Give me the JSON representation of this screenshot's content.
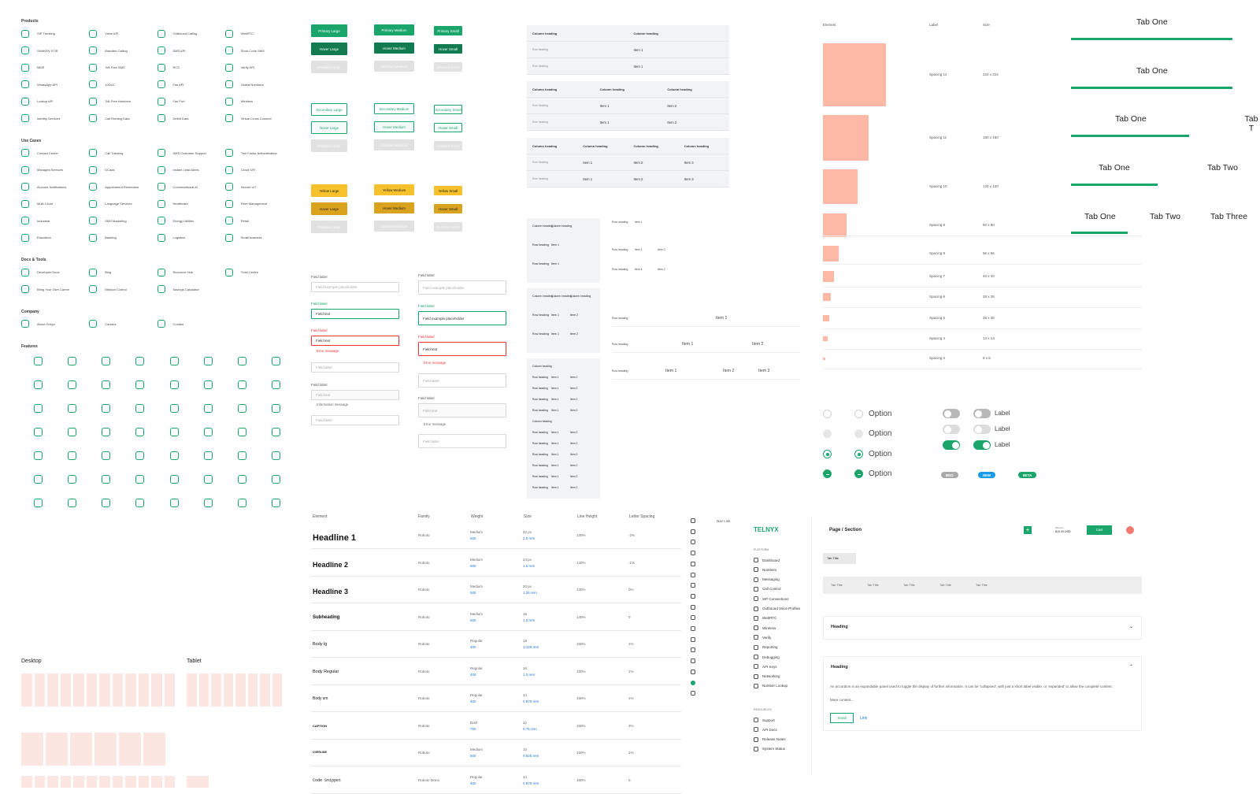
{
  "icons": {
    "products_title": "Products",
    "products": [
      "SIP Trunking",
      "Voice API",
      "Outbound Calling",
      "WebRTC",
      "SHAKEN STIR",
      "Branded Calling",
      "SMS API",
      "Short Code SMS",
      "MMS",
      "Toll-Free SMS",
      "RCS",
      "Verify API",
      "WhatsApp API",
      "10DLC",
      "Fax API",
      "Global Numbers",
      "Lookup API",
      "Toll-Free Numbers",
      "Fax Port",
      "Wireless",
      "Identity Services",
      "Call Routing Data",
      "Deltrit Data",
      "Virtual Cross Connect"
    ],
    "usecases_title": "Use Cases",
    "usecases": [
      "Contact Center",
      "Call Tracking",
      "SMS Customer Support",
      "Two Factor Authentication",
      "Managed Services",
      "UCaas",
      "Instant Lead Alerts",
      "Cloud IVR",
      "Account Notifications",
      "Appointment Reminders",
      "Conversational AI",
      "Secure IoT",
      "Multi-Cloud",
      "Language Services",
      "Healthcare",
      "Fleet Management",
      "Industrial",
      "SMS Marketing",
      "Energy Utilities",
      "Retail",
      "Education",
      "Banking",
      "Logistics",
      "Small business"
    ],
    "docs_title": "Docs & Tools",
    "docs": [
      "Developer Docs",
      "Blog",
      "Resource Hub",
      "Trust Centre",
      "Bring Your Own Carrier",
      "Mission Control",
      "Savings Calculator"
    ],
    "company_title": "Company",
    "company": [
      "About Telnyx",
      "Careers",
      "Contact"
    ],
    "features_title": "Features"
  },
  "buttons": {
    "primary": [
      "Primary Large",
      "Primary Medium",
      "Primary Small",
      "Hover Large",
      "Hover Medium",
      "Hover Small",
      "Disabled Large",
      "Disabled Medium",
      "Disabled Small"
    ],
    "secondary": [
      "Secondary Large",
      "Secondary Medium",
      "Secondary Small",
      "Hover Large",
      "Hover Medium",
      "Hover Small",
      "Disabled Large",
      "Disabled Medium",
      "Disabled Small"
    ],
    "yellow": [
      "Yellow Large",
      "Yellow Medium",
      "Yellow Small",
      "Hover Large",
      "Hover Medium",
      "Hover Small",
      "Disabled Large",
      "Disabled Medium",
      "Disabled Small"
    ]
  },
  "fields": {
    "label": "Field label",
    "placeholder": "Field example placeholder",
    "text": "Field text",
    "error": "Error message",
    "info": "Information message"
  },
  "tables": {
    "col": "Column heading",
    "row": "Row heading",
    "i1": "Item 1",
    "i2": "Item 2",
    "i3": "Item 3"
  },
  "spacing": {
    "headers": [
      "Element",
      "Label",
      "Size"
    ],
    "rows": [
      [
        "Spacing 12",
        "224 x 224"
      ],
      [
        "Spacing 11",
        "160 x 160"
      ],
      [
        "Spacing 10",
        "120 x 120"
      ],
      [
        "Spacing 9",
        "80 x 80"
      ],
      [
        "Spacing 8",
        "56 x 56"
      ],
      [
        "Spacing 7",
        "40 x 40"
      ],
      [
        "Spacing 6",
        "28 x 28"
      ],
      [
        "Spacing 5",
        "28 x 28"
      ],
      [
        "Spacing 4",
        "14 x 14"
      ],
      [
        "Spacing 3",
        "8 x 8"
      ]
    ]
  },
  "tabs": {
    "one": "Tab One",
    "two": "Tab Two",
    "three": "Tab Three",
    "trunc": "Tab T"
  },
  "controls": {
    "option": "Option",
    "label": "Label",
    "b1": "BDG",
    "b2": "NEW",
    "b3": "BETA"
  },
  "type": {
    "headers": [
      "Element",
      "Family",
      "Weight",
      "Size",
      "Line Height",
      "Letter Spacing"
    ],
    "rows": [
      [
        "Headline 1",
        "Roboto",
        "Medium",
        "500",
        "32 px",
        "2.0 rem",
        "130%",
        "-2%"
      ],
      [
        "Headline 2",
        "Roboto",
        "Medium",
        "500",
        "24 px",
        "1.5 rem",
        "140%",
        "-1%"
      ],
      [
        "Headline 3",
        "Roboto",
        "Medium",
        "500",
        "20 px",
        "1.25 rem",
        "140%",
        "0%"
      ],
      [
        "Subheading",
        "Roboto",
        "Medium",
        "500",
        "16",
        "1.0 rem",
        "140%",
        "0"
      ],
      [
        "Body lg",
        "Roboto",
        "Regular",
        "400",
        "18",
        "1.125 rem",
        "150%",
        "1%"
      ],
      [
        "Body Regular",
        "Roboto",
        "Regular",
        "400",
        "16",
        "1.0 rem",
        "150%",
        "1%"
      ],
      [
        "Body sm",
        "Roboto",
        "Regular",
        "400",
        "14",
        "0.875 rem",
        "150%",
        "1%"
      ],
      [
        "CAPTION",
        "Roboto",
        "Bold",
        "700",
        "12",
        "0.75 rem",
        "150%",
        "2%"
      ],
      [
        "OVERLINE",
        "Roboto",
        "Medium",
        "500",
        "10",
        "0.625 rem",
        "160%",
        "1%"
      ],
      [
        "Code Snippet",
        "Roboto Mono",
        "Regular",
        "400",
        "14",
        "0.875 rem",
        "160%",
        "0"
      ]
    ]
  },
  "grids": {
    "desktop": "Desktop",
    "tablet": "Tablet"
  },
  "nav": {
    "navlink": "Nav Link"
  },
  "app": {
    "logo": "TELNYX",
    "platform": "PLATFORM",
    "items": [
      "Dashboard",
      "Numbers",
      "Messaging",
      "Call Control",
      "SIP Connections",
      "Outbound Voice Profiles",
      "WebRTC",
      "Wireless",
      "Verify",
      "Reporting",
      "Debugging",
      "API Keys",
      "Networking",
      "Number Lookup"
    ],
    "resources": "RESOURCES",
    "res_items": [
      "Support",
      "API Docs",
      "Release Notes",
      "System Status"
    ],
    "page": "Page / Section",
    "balance_lbl": "Balance",
    "balance": "$10.00 USD",
    "avail_lbl": "Available Credit",
    "avail": "$10.00 USD",
    "cart": "Cart",
    "tabtitle": "Tab Title",
    "heading": "Heading",
    "acc_text": "An accordion is an expandable panel used to toggle the display of further information. It can be 'collapsed', with just a short label visible, or 'expanded' to allow the complete content.",
    "more": "More content...",
    "small": "Small",
    "link": "Link"
  }
}
